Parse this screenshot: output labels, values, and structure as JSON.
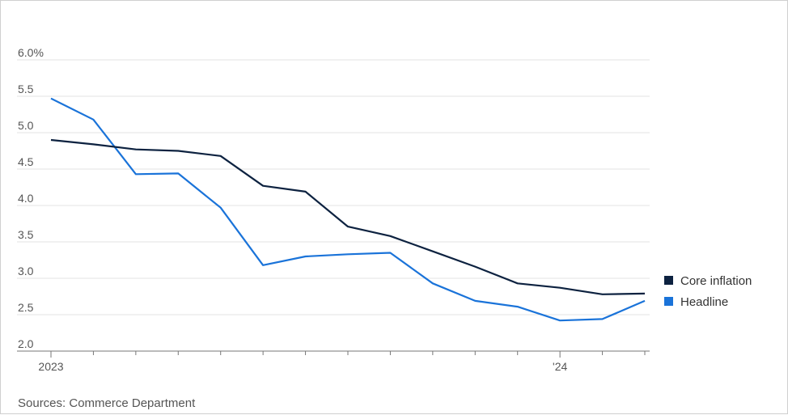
{
  "chart_data": {
    "type": "line",
    "x": [
      "2023-01",
      "2023-02",
      "2023-03",
      "2023-04",
      "2023-05",
      "2023-06",
      "2023-07",
      "2023-08",
      "2023-09",
      "2023-10",
      "2023-11",
      "2023-12",
      "2024-01",
      "2024-02",
      "2024-03"
    ],
    "x_tick_labels": {
      "2023-01": "2023",
      "2024-01": "'24"
    },
    "series": [
      {
        "name": "Core inflation",
        "color": "#0d2240",
        "values": [
          4.9,
          4.84,
          4.77,
          4.75,
          4.68,
          4.27,
          4.19,
          3.71,
          3.58,
          3.37,
          3.16,
          2.93,
          2.87,
          2.78,
          2.79
        ]
      },
      {
        "name": "Headline",
        "color": "#1a73d9",
        "values": [
          5.47,
          5.18,
          4.43,
          4.44,
          3.97,
          3.18,
          3.3,
          3.33,
          3.35,
          2.93,
          2.69,
          2.61,
          2.42,
          2.44,
          2.69
        ]
      }
    ],
    "y_ticks": [
      {
        "value": 2.0,
        "label": "2.0"
      },
      {
        "value": 2.5,
        "label": "2.5"
      },
      {
        "value": 3.0,
        "label": "3.0"
      },
      {
        "value": 3.5,
        "label": "3.5"
      },
      {
        "value": 4.0,
        "label": "4.0"
      },
      {
        "value": 4.5,
        "label": "4.5"
      },
      {
        "value": 5.0,
        "label": "5.0"
      },
      {
        "value": 5.5,
        "label": "5.5"
      },
      {
        "value": 6.0,
        "label": "6.0%"
      }
    ],
    "ylim": [
      2.0,
      6.0
    ],
    "grid": true,
    "legend_position": "right",
    "source": "Sources: Commerce Department",
    "colors": {
      "grid": "#e3e3e3",
      "axis": "#777777",
      "tick_text": "#555555"
    }
  }
}
